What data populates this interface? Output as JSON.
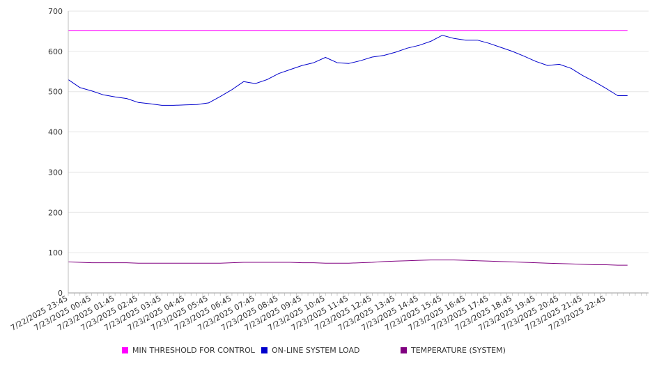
{
  "chart_data": {
    "type": "line",
    "title": "",
    "xlabel": "",
    "ylabel": "",
    "ylim": [
      0,
      700
    ],
    "y_ticks": [
      0,
      100,
      200,
      300,
      400,
      500,
      600,
      700
    ],
    "grid": true,
    "legend_position": "bottom",
    "x_tick_labels": [
      "7/22/2025 23:45",
      "7/23/2025 00:45",
      "7/23/2025 01:45",
      "7/23/2025 02:45",
      "7/23/2025 03:45",
      "7/23/2025 04:45",
      "7/23/2025 05:45",
      "7/23/2025 06:45",
      "7/23/2025 07:45",
      "7/23/2025 08:45",
      "7/23/2025 09:45",
      "7/23/2025 10:45",
      "7/23/2025 11:45",
      "7/23/2025 12:45",
      "7/23/2025 13:45",
      "7/23/2025 14:45",
      "7/23/2025 15:45",
      "7/23/2025 16:45",
      "7/23/2025 17:45",
      "7/23/2025 18:45",
      "7/23/2025 19:45",
      "7/23/2025 20:45",
      "7/23/2025 21:45",
      "7/23/2025 22:45"
    ],
    "x": [
      "7/22/2025 23:45",
      "7/23/2025 00:15",
      "7/23/2025 00:45",
      "7/23/2025 01:15",
      "7/23/2025 01:45",
      "7/23/2025 02:15",
      "7/23/2025 02:45",
      "7/23/2025 03:15",
      "7/23/2025 03:45",
      "7/23/2025 04:15",
      "7/23/2025 04:45",
      "7/23/2025 05:15",
      "7/23/2025 05:45",
      "7/23/2025 06:15",
      "7/23/2025 06:45",
      "7/23/2025 07:15",
      "7/23/2025 07:45",
      "7/23/2025 08:15",
      "7/23/2025 08:45",
      "7/23/2025 09:15",
      "7/23/2025 09:45",
      "7/23/2025 10:15",
      "7/23/2025 10:45",
      "7/23/2025 11:15",
      "7/23/2025 11:45",
      "7/23/2025 12:15",
      "7/23/2025 12:45",
      "7/23/2025 13:15",
      "7/23/2025 13:45",
      "7/23/2025 14:15",
      "7/23/2025 14:45",
      "7/23/2025 15:15",
      "7/23/2025 15:45",
      "7/23/2025 16:15",
      "7/23/2025 16:45",
      "7/23/2025 17:15",
      "7/23/2025 17:45",
      "7/23/2025 18:15",
      "7/23/2025 18:45",
      "7/23/2025 19:15",
      "7/23/2025 19:45",
      "7/23/2025 20:15",
      "7/23/2025 20:45",
      "7/23/2025 21:15",
      "7/23/2025 21:45",
      "7/23/2025 22:15",
      "7/23/2025 22:45",
      "7/23/2025 23:15",
      "7/23/2025 23:40"
    ],
    "series": [
      {
        "name": "MIN THRESHOLD FOR CONTROL",
        "color": "#ff00ff",
        "values": [
          652,
          652,
          652,
          652,
          652,
          652,
          652,
          652,
          652,
          652,
          652,
          652,
          652,
          652,
          652,
          652,
          652,
          652,
          652,
          652,
          652,
          652,
          652,
          652,
          652,
          652,
          652,
          652,
          652,
          652,
          652,
          652,
          652,
          652,
          652,
          652,
          652,
          652,
          652,
          652,
          652,
          652,
          652,
          652,
          652,
          652,
          652,
          652,
          652
        ]
      },
      {
        "name": "ON-LINE SYSTEM LOAD",
        "color": "#0000cc",
        "values": [
          530,
          510,
          502,
          492,
          487,
          483,
          473,
          470,
          466,
          466,
          467,
          468,
          472,
          488,
          505,
          525,
          520,
          530,
          545,
          555,
          565,
          572,
          585,
          572,
          570,
          577,
          586,
          590,
          598,
          608,
          615,
          625,
          640,
          632,
          628,
          628,
          620,
          610,
          600,
          588,
          575,
          565,
          568,
          558,
          540,
          525,
          508,
          490,
          490
        ]
      },
      {
        "name": "TEMPERATURE (SYSTEM)",
        "color": "#800080",
        "values": [
          77,
          76,
          75,
          75,
          75,
          75,
          74,
          74,
          74,
          74,
          74,
          74,
          74,
          74,
          75,
          76,
          76,
          76,
          76,
          76,
          75,
          75,
          74,
          74,
          74,
          75,
          76,
          78,
          79,
          80,
          81,
          82,
          82,
          82,
          81,
          80,
          79,
          78,
          77,
          76,
          75,
          74,
          73,
          72,
          71,
          70,
          70,
          69,
          69
        ]
      }
    ]
  }
}
